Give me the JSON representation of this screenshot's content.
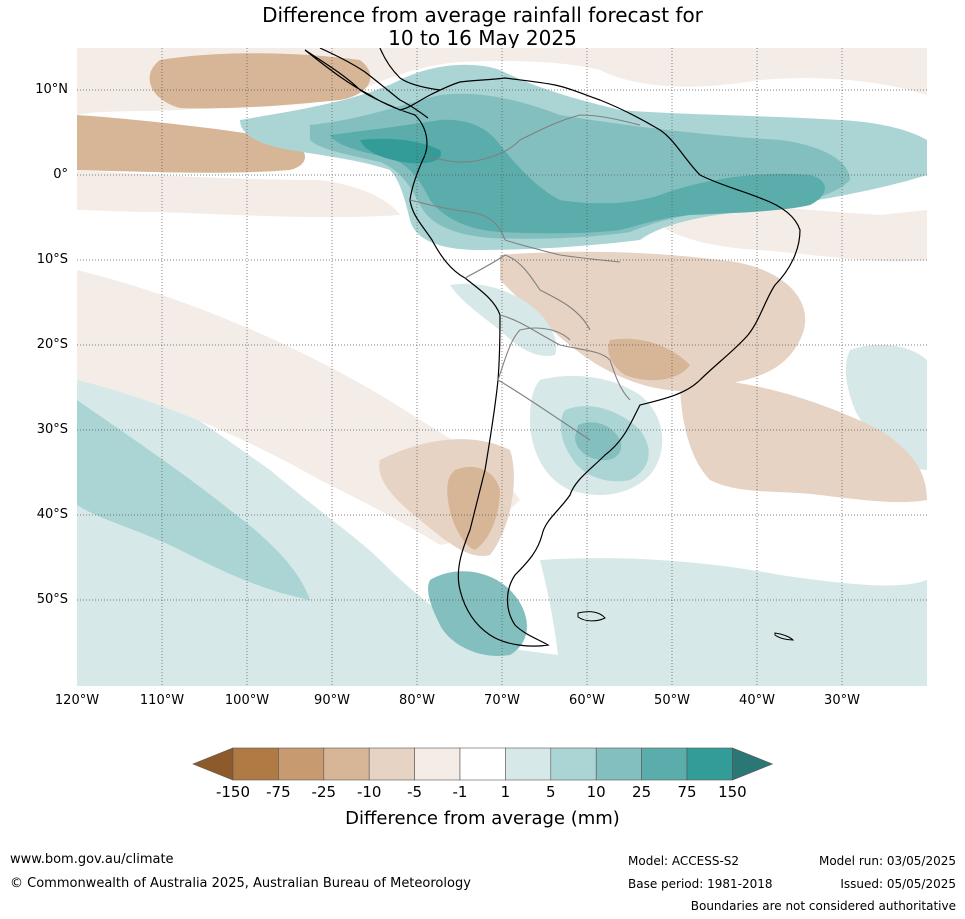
{
  "title": {
    "line1": "Difference from average rainfall forecast for",
    "line2": "10 to 16 May 2025"
  },
  "map": {
    "lat_labels": [
      "10°N",
      "0°",
      "10°S",
      "20°S",
      "30°S",
      "40°S",
      "50°S"
    ],
    "lon_labels": [
      "120°W",
      "110°W",
      "100°W",
      "90°W",
      "80°W",
      "70°W",
      "60°W",
      "50°W",
      "40°W",
      "30°W"
    ]
  },
  "colorbar": {
    "ticks": [
      "-150",
      "-75",
      "-25",
      "-10",
      "-5",
      "-1",
      "1",
      "5",
      "10",
      "25",
      "75",
      "150"
    ],
    "colors": [
      "#8f5a2b",
      "#b07a45",
      "#c79a6f",
      "#d7b597",
      "#e6d3c3",
      "#f4ece7",
      "#ffffff",
      "#d6e9e8",
      "#aad5d4",
      "#83bfbe",
      "#5aadab",
      "#339b98",
      "#2a7775"
    ],
    "label": "Difference from average (mm)"
  },
  "footer": {
    "website": "www.bom.gov.au/climate",
    "copyright": "© Commonwealth of Australia 2025, Australian Bureau of Meteorology",
    "model": "Model: ACCESS-S2",
    "base_period": "Base period: 1981-2018",
    "model_run": "Model run: 03/05/2025",
    "issued": "Issued: 05/05/2025",
    "disclaimer": "Boundaries are not considered authoritative"
  }
}
